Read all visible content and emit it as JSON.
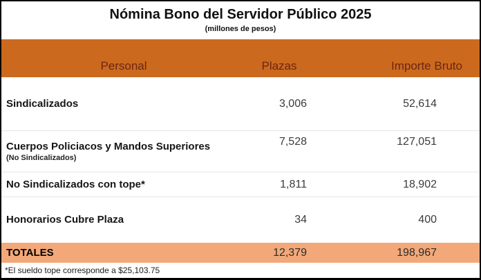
{
  "header": {
    "title": "Nómina Bono del Servidor Público 2025",
    "subtitle": "(millones de pesos)"
  },
  "columns": {
    "personal": "Personal",
    "plazas": "Plazas",
    "importe": "Importe Bruto"
  },
  "rows": [
    {
      "label": "Sindicalizados",
      "sublabel": "",
      "plazas": "3,006",
      "importe": "52,614"
    },
    {
      "label": "Cuerpos Policiacos y Mandos Superiores",
      "sublabel": "(No Sindicalizados)",
      "plazas": "7,528",
      "importe": "127,051"
    },
    {
      "label": "No Sindicalizados con tope*",
      "sublabel": "",
      "plazas": "1,811",
      "importe": "18,902"
    },
    {
      "label": "Honorarios Cubre Plaza",
      "sublabel": "",
      "plazas": "34",
      "importe": "400"
    }
  ],
  "totals": {
    "label": "TOTALES",
    "plazas": "12,379",
    "importe": "198,967"
  },
  "footnote": "*El sueldo tope corresponde a $25,103.75",
  "colors": {
    "header_band_bg": "#CB6A1E",
    "header_band_text": "#6E2413",
    "totals_band_bg": "#F2A878",
    "border": "#000000"
  },
  "chart_data": {
    "type": "table",
    "title": "Nómina Bono del Servidor Público 2025",
    "subtitle": "(millones de pesos)",
    "columns": [
      "Personal",
      "Plazas",
      "Importe Bruto"
    ],
    "rows": [
      [
        "Sindicalizados",
        3006,
        52614
      ],
      [
        "Cuerpos Policiacos y Mandos Superiores (No Sindicalizados)",
        7528,
        127051
      ],
      [
        "No Sindicalizados con tope*",
        1811,
        18902
      ],
      [
        "Honorarios Cubre Plaza",
        34,
        400
      ]
    ],
    "totals": [
      "TOTALES",
      12379,
      198967
    ],
    "footnote": "*El sueldo tope corresponde a $25,103.75"
  }
}
